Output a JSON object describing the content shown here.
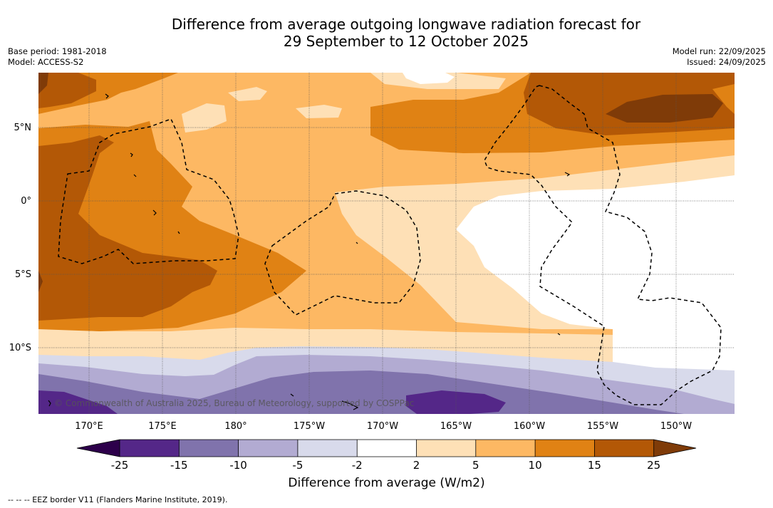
{
  "title": {
    "line1": "Difference from average outgoing longwave radiation forecast for",
    "line2": "29 September to 12 October 2025"
  },
  "meta": {
    "base_period": "Base period: 1981-2018",
    "model": "Model: ACCESS-S2",
    "model_run": "Model run: 22/09/2025",
    "issued": "Issued: 24/09/2025"
  },
  "map": {
    "copyright": "© Commonwealth of Australia 2025, Bureau of Meteorology, supported by COSPPac",
    "lat_labels": [
      "5°N",
      "0°",
      "5°S",
      "10°S"
    ],
    "lon_labels": [
      "170°E",
      "175°E",
      "180°",
      "175°W",
      "170°W",
      "165°W",
      "160°W",
      "155°W",
      "150°W"
    ]
  },
  "colorbar": {
    "title": "Difference from average (W/m2)",
    "ticks": [
      "-25",
      "-15",
      "-10",
      "-5",
      "-2",
      "2",
      "5",
      "10",
      "15",
      "25"
    ],
    "colors": {
      "lt_-25": "#2d004b",
      "-25_-15": "#542788",
      "-15_-10": "#8073ac",
      "-10_-5": "#b2abd2",
      "-5_-2": "#d8daeb",
      "-2_2": "#ffffff",
      "2_5": "#fee0b6",
      "5_10": "#fdb863",
      "10_15": "#e08214",
      "15_25": "#b35806",
      "gt_25": "#7f3b08"
    }
  },
  "legend": {
    "eez": "-- -- -- EEZ border V11 (Flanders Marine Institute, 2019)."
  }
}
